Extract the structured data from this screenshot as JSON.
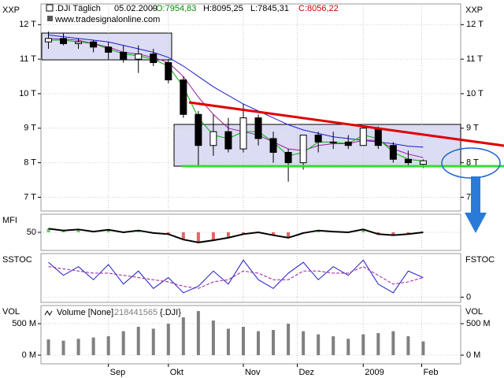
{
  "chart_data": [
    {
      "type": "candlestick",
      "left_label": "XXP",
      "right_label": "XXP",
      "title": ".DJI Täglich",
      "date": "05.02.2009",
      "last": {
        "values": [
          7954.83,
          8095.25,
          7845.31,
          8056.22
        ],
        "value_labels": [
          "O:7954,83",
          "H:8095,25",
          "L:7845,31",
          "C:8056,22"
        ],
        "colors": [
          "#009000",
          "#000000",
          "#000000",
          "#d00000"
        ]
      },
      "watermark": "www.tradesignalonline.com",
      "x": [
        0,
        1,
        2,
        3,
        4,
        5,
        6,
        7,
        8,
        9,
        10,
        11,
        12,
        13,
        14,
        15,
        16,
        17,
        18,
        19,
        20,
        21,
        22,
        23,
        24,
        25
      ],
      "open": [
        11500,
        11600,
        11450,
        11500,
        11350,
        11200,
        11000,
        11150,
        10900,
        10400,
        9400,
        8500,
        8900,
        8400,
        9300,
        8700,
        8300,
        8000,
        8800,
        8600,
        8600,
        8500,
        9000,
        8500,
        8100,
        7954.83
      ],
      "high": [
        11800,
        11750,
        11600,
        11550,
        11500,
        11400,
        11400,
        11300,
        11000,
        10500,
        9500,
        9400,
        9300,
        9700,
        9400,
        8900,
        8400,
        8800,
        8900,
        8900,
        8800,
        9050,
        9050,
        8600,
        8350,
        8095.25
      ],
      "low": [
        11300,
        11400,
        11300,
        11200,
        11000,
        10900,
        10600,
        10800,
        10300,
        9300,
        7900,
        8200,
        8300,
        8300,
        8500,
        8000,
        7450,
        7800,
        8300,
        8400,
        8400,
        8500,
        8400,
        8000,
        7900,
        7845.31
      ],
      "close": [
        11600,
        11450,
        11500,
        11350,
        11200,
        11000,
        11150,
        10900,
        10400,
        9400,
        8500,
        8900,
        8400,
        9300,
        8700,
        8300,
        8000,
        8800,
        8600,
        8600,
        8500,
        9000,
        8500,
        8100,
        8000,
        8056.22
      ],
      "up_color": "#ffffff",
      "down_color": "#000000",
      "overlays": [
        {
          "color": "#1c1cc8",
          "values": [
            11700,
            11650,
            11600,
            11550,
            11500,
            11400,
            11300,
            11200,
            11050,
            10800,
            10500,
            10200,
            9950,
            9700,
            9500,
            9300,
            9100,
            8950,
            8850,
            8750,
            8700,
            8650,
            8600,
            8550,
            8480,
            8450
          ]
        },
        {
          "color": "#9c1c9c",
          "values": [
            11600,
            11580,
            11550,
            11450,
            11350,
            11200,
            11150,
            11050,
            10900,
            10500,
            9900,
            9400,
            9000,
            8900,
            8800,
            8600,
            8400,
            8350,
            8500,
            8550,
            8550,
            8650,
            8650,
            8400,
            8250,
            8150
          ]
        },
        {
          "color": "#00b000",
          "values": [
            11550,
            11550,
            11500,
            11450,
            11300,
            11150,
            11100,
            11000,
            10800,
            10200,
            9300,
            8800,
            8700,
            8900,
            8900,
            8600,
            8200,
            8300,
            8600,
            8600,
            8550,
            8800,
            8700,
            8300,
            8100,
            8050
          ]
        }
      ],
      "ylim": [
        6600,
        12600
      ],
      "yticks": [
        {
          "value": 7000,
          "label": "7 T"
        },
        {
          "value": 8000,
          "label": "8 T"
        },
        {
          "value": 9000,
          "label": "9 T"
        },
        {
          "value": 10000,
          "label": "10 T"
        },
        {
          "value": 11000,
          "label": "11 T"
        },
        {
          "value": 12000,
          "label": "12 T"
        }
      ]
    },
    {
      "type": "line",
      "left_label": "MFI",
      "histogram_colors": [
        "#00b000",
        "#d00000"
      ],
      "series": [
        {
          "color": "#000000",
          "values": [
            60,
            55,
            58,
            52,
            57,
            50,
            55,
            48,
            45,
            30,
            22,
            28,
            35,
            45,
            50,
            42,
            35,
            48,
            55,
            52,
            50,
            58,
            45,
            42,
            45,
            50
          ]
        }
      ],
      "ylim": [
        0,
        100
      ],
      "yticks": [
        50
      ],
      "baseline": 50
    },
    {
      "type": "line",
      "left_label": "SSTOC",
      "right_label": "FSTOC",
      "series": [
        {
          "color": "#1c1cc8",
          "values": [
            80,
            50,
            70,
            40,
            75,
            30,
            60,
            20,
            45,
            10,
            25,
            60,
            30,
            85,
            40,
            20,
            55,
            80,
            40,
            70,
            50,
            85,
            30,
            10,
            60,
            45
          ]
        },
        {
          "color": "#9c1c9c",
          "dashed": true,
          "values": [
            70,
            65,
            60,
            55,
            55,
            50,
            45,
            40,
            35,
            25,
            20,
            35,
            40,
            60,
            55,
            40,
            40,
            60,
            60,
            55,
            55,
            70,
            50,
            30,
            35,
            45
          ]
        }
      ],
      "ylim": [
        -12,
        100
      ],
      "yticks": [
        0
      ]
    },
    {
      "type": "bar",
      "left_label": "VOL",
      "right_label": "VOL",
      "volume_label": "Volume [None]",
      "last_volume": 218441565,
      "symbol_label": "{.DJI}",
      "color": "#808080",
      "values": [
        250000000,
        230000000,
        260000000,
        280000000,
        300000000,
        380000000,
        450000000,
        420000000,
        500000000,
        600000000,
        700000000,
        550000000,
        420000000,
        450000000,
        380000000,
        400000000,
        500000000,
        380000000,
        330000000,
        300000000,
        260000000,
        330000000,
        350000000,
        380000000,
        300000000,
        218441565
      ],
      "ylim": [
        -137500000,
        787500000
      ],
      "yticks": [
        {
          "value": 0,
          "label": "0 M"
        },
        {
          "value": 500000000,
          "label": "500 M"
        }
      ],
      "xlim": [
        -0.5,
        27.5
      ],
      "xticks": [
        {
          "value": 4,
          "label": "Sep"
        },
        {
          "value": 8,
          "label": "Okt"
        },
        {
          "value": 13,
          "label": "Nov"
        },
        {
          "value": 16.6,
          "label": "Dez"
        },
        {
          "value": 21,
          "label": "2009"
        },
        {
          "value": 24.9,
          "label": "Feb"
        }
      ]
    }
  ]
}
